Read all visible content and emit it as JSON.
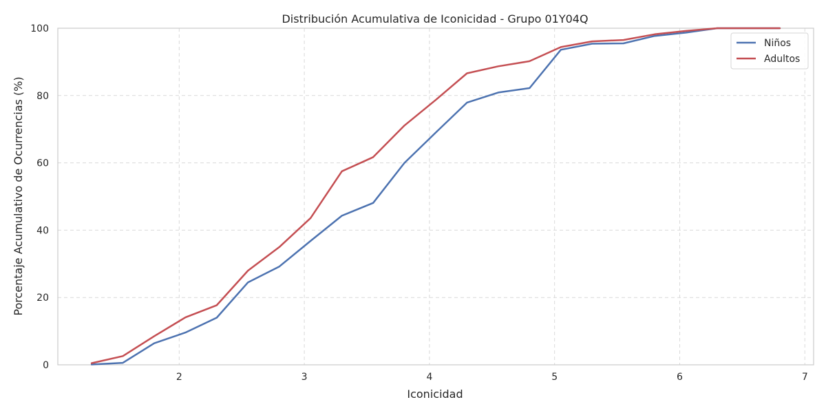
{
  "chart_data": {
    "type": "line",
    "title": "Distribución Acumulativa de Iconicidad - Grupo 01Y04Q",
    "xlabel": "Iconicidad",
    "ylabel": "Porcentaje Acumulativo de Ocurrencias (%)",
    "xlim": [
      1.03,
      7.07
    ],
    "ylim": [
      0,
      100
    ],
    "xticks": [
      2,
      3,
      4,
      5,
      6,
      7
    ],
    "yticks": [
      0,
      20,
      40,
      60,
      80,
      100
    ],
    "grid": true,
    "legend_position": "top-right",
    "series": [
      {
        "name": "Niños",
        "color": "#4c72b0",
        "x": [
          1.3,
          1.55,
          1.8,
          2.05,
          2.3,
          2.55,
          2.8,
          3.05,
          3.3,
          3.55,
          3.8,
          4.05,
          4.3,
          4.55,
          4.8,
          5.05,
          5.3,
          5.55,
          5.8,
          6.05,
          6.3,
          6.55,
          6.8
        ],
        "y": [
          0.1,
          0.6,
          6.4,
          9.6,
          14.0,
          24.5,
          29.2,
          36.8,
          44.3,
          48.1,
          60.0,
          69.0,
          77.9,
          80.9,
          82.2,
          93.6,
          95.4,
          95.5,
          97.7,
          98.7,
          100.0,
          100.0,
          100.0
        ]
      },
      {
        "name": "Adultos",
        "color": "#c44e52",
        "x": [
          1.3,
          1.55,
          1.8,
          2.05,
          2.3,
          2.55,
          2.8,
          3.05,
          3.3,
          3.55,
          3.8,
          4.05,
          4.3,
          4.55,
          4.8,
          5.05,
          5.3,
          5.55,
          5.8,
          6.05,
          6.3,
          6.55,
          6.8
        ],
        "y": [
          0.5,
          2.6,
          8.5,
          14.1,
          17.7,
          28.0,
          35.0,
          43.6,
          57.5,
          61.7,
          71.1,
          78.7,
          86.6,
          88.7,
          90.2,
          94.4,
          96.1,
          96.5,
          98.2,
          99.2,
          100.0,
          100.0,
          100.0
        ]
      }
    ]
  }
}
